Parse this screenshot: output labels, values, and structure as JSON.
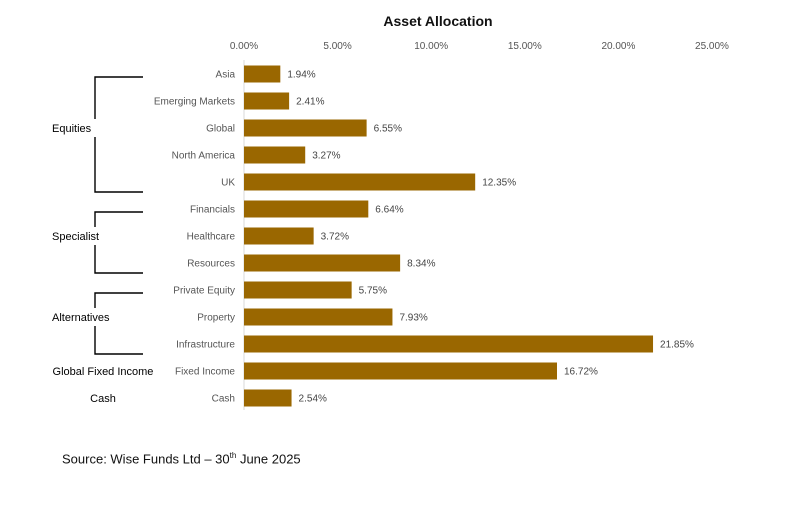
{
  "chart_data": {
    "type": "bar",
    "orientation": "horizontal",
    "title": "Asset Allocation",
    "categories": [
      "Asia",
      "Emerging Markets",
      "Global",
      "North America",
      "UK",
      "Financials",
      "Healthcare",
      "Resources",
      "Private Equity",
      "Property",
      "Infrastructure",
      "Fixed Income",
      "Cash"
    ],
    "values": [
      1.94,
      2.41,
      6.55,
      3.27,
      12.35,
      6.64,
      3.72,
      8.34,
      5.75,
      7.93,
      21.85,
      16.72,
      2.54
    ],
    "data_labels": [
      "1.94%",
      "2.41%",
      "6.55%",
      "3.27%",
      "12.35%",
      "6.64%",
      "3.72%",
      "8.34%",
      "5.75%",
      "7.93%",
      "21.85%",
      "16.72%",
      "2.54%"
    ],
    "xlim": [
      0,
      25
    ],
    "x_ticks": [
      "0.00%",
      "5.00%",
      "10.00%",
      "15.00%",
      "20.00%",
      "25.00%"
    ],
    "x_tick_values": [
      0,
      5,
      10,
      15,
      20,
      25
    ],
    "x_axis_position": "top",
    "grid": false,
    "legend": "none",
    "bar_color": "#9A6700",
    "groups": [
      {
        "label": "Equities",
        "start": 0,
        "end": 4,
        "bracket": true
      },
      {
        "label": "Specialist",
        "start": 5,
        "end": 7,
        "bracket": true
      },
      {
        "label": "Alternatives",
        "start": 8,
        "end": 10,
        "bracket": true
      },
      {
        "label": "Global Fixed Income",
        "start": 11,
        "end": 11,
        "bracket": false
      },
      {
        "label": "Cash",
        "start": 12,
        "end": 12,
        "bracket": false
      }
    ]
  },
  "source": {
    "prefix": "Source: Wise Funds Ltd – 30",
    "superscript": "th",
    "suffix": " June 2025"
  }
}
